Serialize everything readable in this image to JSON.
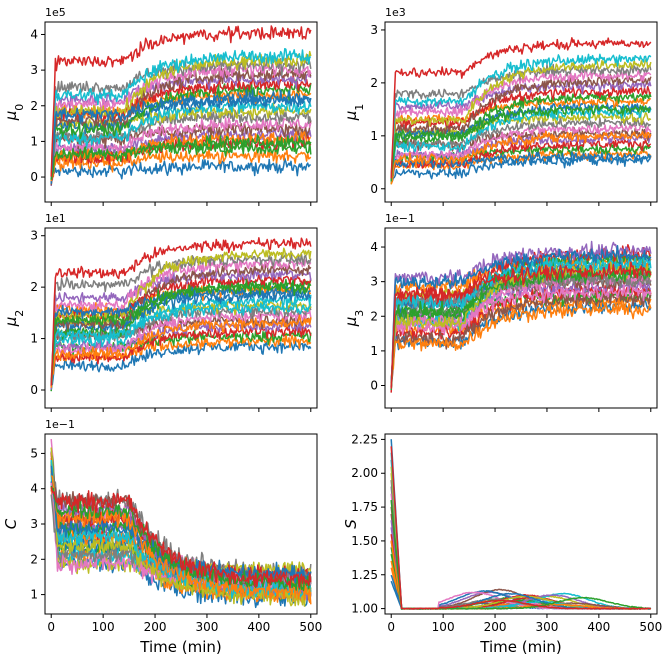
{
  "figure": {
    "layout": "3 rows x 2 columns, shared x axis per column"
  },
  "chart_data": [
    {
      "type": "line",
      "id": "mu0",
      "ylabel": "μ",
      "ylabel_sub": "0",
      "multiplier": "1e5",
      "xlim": [
        -12,
        512
      ],
      "ylim": [
        -0.7,
        4.35
      ],
      "yticks": [
        0,
        1,
        2,
        3,
        4
      ],
      "xticks": [
        0,
        100,
        200,
        300,
        400,
        500
      ],
      "show_xticklabels": false,
      "xlabel": "",
      "shape": "rise",
      "n_series": 24,
      "series_levels": [
        0.3,
        0.6,
        0.8,
        1.0,
        1.2,
        1.35,
        1.5,
        1.7,
        1.85,
        2.0,
        2.15,
        2.3,
        2.45,
        2.6,
        2.75,
        2.9,
        3.05,
        3.15,
        3.3,
        3.4,
        2.2,
        1.1,
        0.95,
        4.05
      ],
      "noise": 0.2,
      "t_end": 500
    },
    {
      "type": "line",
      "id": "mu1",
      "ylabel": "μ",
      "ylabel_sub": "1",
      "multiplier": "1e3",
      "xlim": [
        -12,
        512
      ],
      "ylim": [
        -0.25,
        3.15
      ],
      "yticks": [
        0,
        1,
        2,
        3
      ],
      "xticks": [
        0,
        100,
        200,
        300,
        400,
        500
      ],
      "show_xticklabels": false,
      "xlabel": "",
      "shape": "rise",
      "n_series": 24,
      "series_levels": [
        0.55,
        0.65,
        0.75,
        0.85,
        0.95,
        1.05,
        1.15,
        1.25,
        1.35,
        1.45,
        1.55,
        1.65,
        1.75,
        1.85,
        1.95,
        2.05,
        2.15,
        2.25,
        2.35,
        2.45,
        0.6,
        1.0,
        1.5,
        2.75
      ],
      "noise": 0.1,
      "t_end": 500
    },
    {
      "type": "line",
      "id": "mu2",
      "ylabel": "μ",
      "ylabel_sub": "2",
      "multiplier": "1e1",
      "xlim": [
        -12,
        512
      ],
      "ylim": [
        -0.35,
        3.15
      ],
      "yticks": [
        0,
        1,
        2,
        3
      ],
      "xticks": [
        0,
        100,
        200,
        300,
        400,
        500
      ],
      "show_xticklabels": false,
      "xlabel": "",
      "shape": "rise",
      "n_series": 24,
      "series_levels": [
        0.85,
        0.95,
        1.05,
        1.15,
        1.25,
        1.35,
        1.45,
        1.55,
        1.65,
        1.75,
        1.85,
        1.95,
        2.05,
        2.15,
        2.25,
        2.35,
        2.45,
        2.55,
        2.65,
        1.6,
        1.9,
        1.3,
        2.0,
        2.85
      ],
      "noise": 0.12,
      "t_end": 500
    },
    {
      "type": "line",
      "id": "mu3",
      "ylabel": "μ",
      "ylabel_sub": "3",
      "multiplier": "1e−1",
      "xlim": [
        -12,
        512
      ],
      "ylim": [
        -0.65,
        4.55
      ],
      "yticks": [
        0,
        1,
        2,
        3,
        4
      ],
      "xticks": [
        0,
        100,
        200,
        300,
        400,
        500
      ],
      "show_xticklabels": false,
      "xlabel": "",
      "shape": "rise",
      "n_series": 24,
      "series_levels": [
        2.3,
        2.45,
        2.6,
        2.75,
        2.9,
        3.0,
        3.1,
        3.2,
        3.3,
        3.4,
        3.5,
        3.6,
        3.7,
        3.8,
        3.9,
        2.5,
        2.7,
        3.05,
        3.35,
        3.55,
        3.75,
        2.2,
        3.2,
        3.3
      ],
      "noise": 0.22,
      "t_end": 500
    },
    {
      "type": "line",
      "id": "C",
      "ylabel": "C",
      "ylabel_sub": "",
      "multiplier": "1e−1",
      "xlim": [
        -12,
        512
      ],
      "ylim": [
        0.45,
        5.55
      ],
      "yticks": [
        1,
        2,
        3,
        4,
        5
      ],
      "xticks": [
        0,
        100,
        200,
        300,
        400,
        500
      ],
      "show_xticklabels": true,
      "xlabel": "Time (min)",
      "shape": "decay",
      "n_series": 24,
      "series_levels": [
        0.9,
        1.0,
        1.1,
        1.2,
        1.3,
        1.4,
        1.5,
        1.6,
        1.7,
        1.2,
        1.4,
        1.0,
        1.3,
        1.5,
        1.1,
        1.25,
        1.35,
        1.45,
        0.95,
        1.15,
        1.55,
        1.05,
        1.3,
        1.4
      ],
      "noise": 0.22,
      "t_end": 500
    },
    {
      "type": "line",
      "id": "S",
      "ylabel": "S",
      "ylabel_sub": "",
      "multiplier": "",
      "xlim": [
        -12,
        512
      ],
      "ylim": [
        0.96,
        2.29
      ],
      "yticks": [
        1.0,
        1.25,
        1.5,
        1.75,
        2.0,
        2.25
      ],
      "ytick_labels": [
        "1.00",
        "1.25",
        "1.50",
        "1.75",
        "2.00",
        "2.25"
      ],
      "xticks": [
        0,
        100,
        200,
        300,
        400,
        500
      ],
      "show_xticklabels": true,
      "xlabel": "Time (min)",
      "shape": "spike",
      "n_series": 24,
      "series_levels": [
        1.2,
        1.3,
        1.4,
        1.5,
        1.6,
        1.7,
        1.8,
        1.9,
        2.0,
        2.1,
        2.25,
        1.35,
        1.45,
        1.55,
        1.65,
        1.75,
        1.85,
        1.95,
        2.05,
        2.15,
        1.25,
        1.5,
        1.8,
        2.2
      ],
      "bump_heights": [
        0.04,
        0.06,
        0.08,
        0.1,
        0.12,
        0.14,
        0.05,
        0.07,
        0.09,
        0.11,
        0.13,
        0.03,
        0.06,
        0.08,
        0.1,
        0.04,
        0.12,
        0.07,
        0.09,
        0.05,
        0.11,
        0.03,
        0.08,
        0.06
      ],
      "bump_times": [
        170,
        200,
        230,
        260,
        190,
        210,
        240,
        280,
        300,
        330,
        180,
        220,
        250,
        270,
        310,
        350,
        160,
        200,
        260,
        290,
        230,
        320,
        370,
        210
      ],
      "t_end": 500
    }
  ],
  "palette": [
    "#1f77b4",
    "#ff7f0e",
    "#2ca02c",
    "#d62728",
    "#9467bd",
    "#8c564b",
    "#e377c2",
    "#7f7f7f",
    "#bcbd22",
    "#17becf"
  ]
}
